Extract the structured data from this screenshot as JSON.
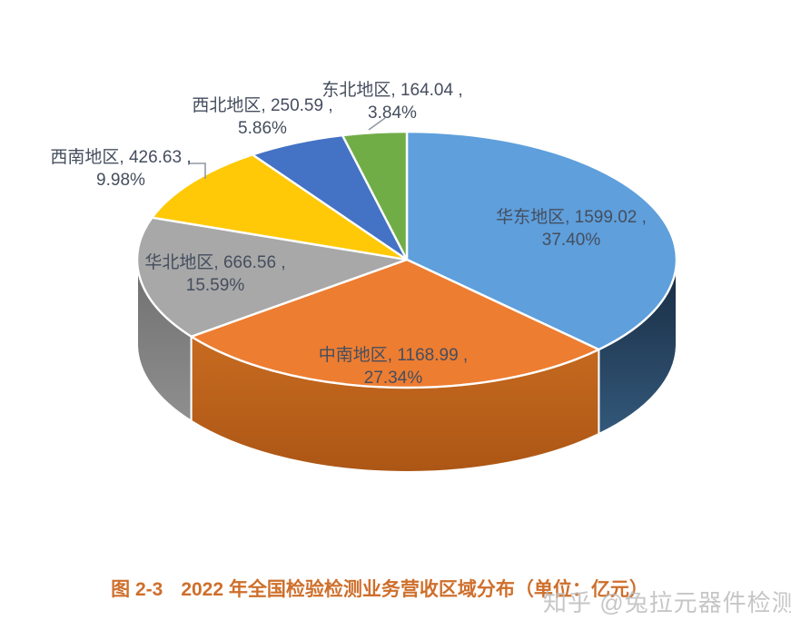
{
  "page": {
    "background": "#ffffff"
  },
  "chart_data": {
    "type": "pie",
    "variant": "3d-pie",
    "title": "",
    "unit": "亿元",
    "legend_position": "none",
    "label_color": "#454e5e",
    "categories": [
      "华东地区",
      "中南地区",
      "华北地区",
      "西南地区",
      "西北地区",
      "东北地区"
    ],
    "values": [
      1599.02,
      1168.99,
      666.56,
      426.63,
      250.59,
      164.04
    ],
    "percents": [
      37.4,
      27.34,
      15.59,
      9.98,
      5.86,
      3.84
    ],
    "slices": [
      {
        "id": "east-china",
        "name": "华东地区",
        "value": 1599.02,
        "pct": 37.4,
        "color": "#5E9FDC",
        "side_top": "#182B41",
        "side_bottom": "#33587A",
        "label_line1": "华东地区, 1599.02 ,",
        "label_line2": "37.40%"
      },
      {
        "id": "central-south",
        "name": "中南地区",
        "value": 1168.99,
        "pct": 27.34,
        "color": "#ED7D31",
        "side_top": "#C76B20",
        "side_bottom": "#AC5615",
        "label_line1": "中南地区, 1168.99 ,",
        "label_line2": "27.34%"
      },
      {
        "id": "north-china",
        "name": "华北地区",
        "value": 666.56,
        "pct": 15.59,
        "color": "#A8A8A8",
        "side_top": "#6F6F6F",
        "side_bottom": "#8F8F8F",
        "label_line1": "华北地区, 666.56 ,",
        "label_line2": "15.59%"
      },
      {
        "id": "southwest",
        "name": "西南地区",
        "value": 426.63,
        "pct": 9.98,
        "color": "#FFC907",
        "side_top": "#B78A00",
        "side_bottom": "#D4A300",
        "label_line1": "西南地区, 426.63 ,",
        "label_line2": "9.98%"
      },
      {
        "id": "northwest",
        "name": "西北地区",
        "value": 250.59,
        "pct": 5.86,
        "color": "#4472C4",
        "side_top": "#2B4A85",
        "side_bottom": "#35599E",
        "label_line1": "西北地区, 250.59 ,",
        "label_line2": "5.86%"
      },
      {
        "id": "northeast",
        "name": "东北地区",
        "value": 164.04,
        "pct": 3.84,
        "color": "#70AD47",
        "side_top": "#4E7A2F",
        "side_bottom": "#5E9139",
        "label_line1": "东北地区, 164.04 ,",
        "label_line2": "3.84%"
      }
    ]
  },
  "caption": {
    "prefix": "图 2-3",
    "text": "2022 年全国检验检测业务营收区域分布（单位：亿元）",
    "color": "#CE6F2B"
  },
  "watermark": {
    "text": "知乎 @兔拉元器件检测",
    "color": "#bdbdbd"
  }
}
